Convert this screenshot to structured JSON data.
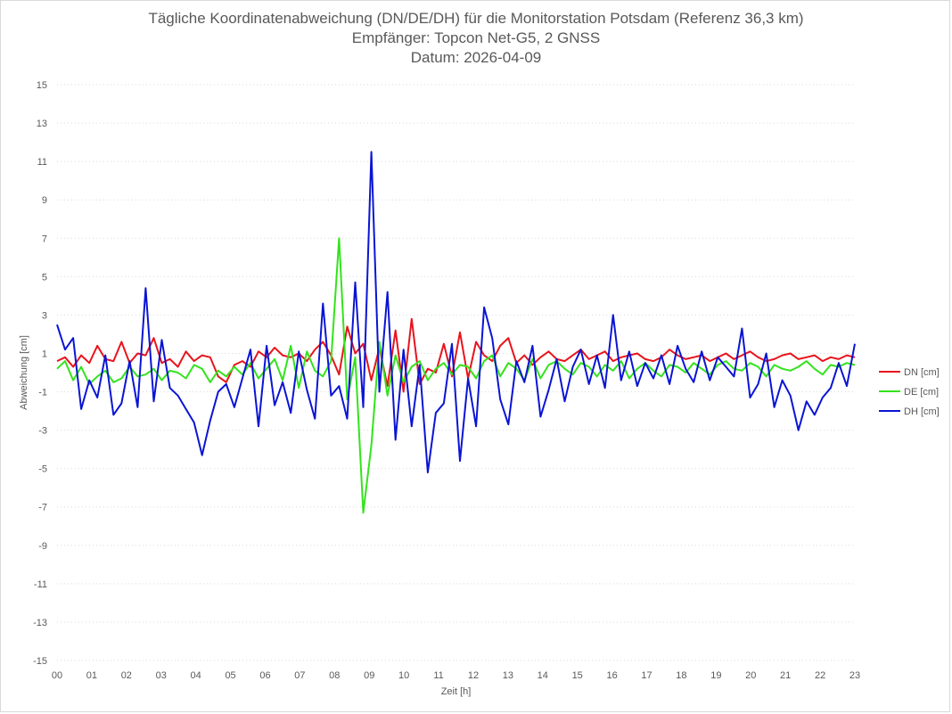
{
  "chart_data": {
    "type": "line",
    "title": "Tägliche Koordinatenabweichung (DN/DE/DH) für die Monitorstation Potsdam (Referenz 36,3 km)",
    "subtitle": "Empfänger: Topcon Net-G5, 2 GNSS",
    "date_line": "Datum: 2026-04-09",
    "xlabel": "Zeit [h]",
    "ylabel": "Abweichung [cm]",
    "xlim": [
      0,
      23
    ],
    "ylim": [
      -15,
      15
    ],
    "x_ticks": [
      "00",
      "01",
      "02",
      "03",
      "04",
      "05",
      "06",
      "07",
      "08",
      "09",
      "10",
      "11",
      "12",
      "13",
      "14",
      "15",
      "16",
      "17",
      "18",
      "19",
      "20",
      "21",
      "22",
      "23"
    ],
    "y_ticks": [
      "15",
      "13",
      "11",
      "9",
      "7",
      "5",
      "3",
      "1",
      "-1",
      "-3",
      "-5",
      "-7",
      "-9",
      "-11",
      "-13",
      "-15"
    ],
    "grid": "horizontal-dotted",
    "legend_position": "right",
    "x_step_hours": 0.5,
    "series": [
      {
        "name": "DN [cm]",
        "color": "#e8141c",
        "values": [
          0.6,
          0.8,
          0.3,
          0.9,
          0.5,
          1.4,
          0.7,
          0.6,
          1.6,
          0.5,
          1.0,
          0.9,
          1.8,
          0.5,
          0.7,
          0.3,
          1.1,
          0.6,
          0.9,
          0.8,
          -0.2,
          -0.5,
          0.4,
          0.6,
          0.3,
          1.1,
          0.8,
          1.3,
          0.9,
          0.8,
          1.0,
          0.6,
          1.2,
          1.6,
          0.9,
          -0.1,
          2.4,
          1.0,
          1.5,
          -0.4,
          1.3,
          -0.7,
          2.2,
          -1.0,
          2.8,
          -0.6,
          0.2,
          0.0,
          1.5,
          -0.2,
          2.1,
          -0.3,
          1.6,
          0.9,
          0.6,
          1.4,
          1.8,
          0.5,
          0.9,
          0.4,
          0.8,
          1.1,
          0.7,
          0.6,
          0.9,
          1.2,
          0.7,
          0.9,
          1.1,
          0.6,
          0.8,
          0.9,
          1.0,
          0.7,
          0.6,
          0.8,
          1.2,
          0.9,
          0.7,
          0.8,
          0.9,
          0.6,
          0.8,
          1.0,
          0.7,
          0.9,
          1.1,
          0.8,
          0.6,
          0.7,
          0.9,
          1.0,
          0.7,
          0.8,
          0.9,
          0.6,
          0.8,
          0.7,
          0.9,
          0.8
        ],
        "note": ""
      },
      {
        "name": "DE [cm]",
        "color": "#33e31c",
        "values": [
          0.2,
          0.6,
          -0.4,
          0.3,
          -0.6,
          -0.2,
          0.1,
          -0.5,
          -0.3,
          0.3,
          -0.2,
          -0.1,
          0.2,
          -0.4,
          0.1,
          0.0,
          -0.3,
          0.4,
          0.2,
          -0.5,
          0.1,
          -0.2,
          0.3,
          -0.1,
          0.5,
          -0.3,
          0.2,
          0.7,
          -0.4,
          1.4,
          -0.8,
          1.1,
          0.1,
          -0.2,
          0.6,
          7.0,
          -1.4,
          0.8,
          -7.3,
          -3.8,
          1.6,
          -1.2,
          0.9,
          -0.5,
          0.3,
          0.6,
          -0.4,
          0.2,
          0.5,
          -0.1,
          0.4,
          0.3,
          -0.3,
          0.6,
          0.9,
          -0.2,
          0.5,
          0.2,
          -0.4,
          0.7,
          -0.3,
          0.4,
          0.6,
          0.2,
          -0.1,
          0.5,
          0.3,
          -0.2,
          0.4,
          0.1,
          0.6,
          -0.3,
          0.2,
          0.5,
          0.1,
          -0.2,
          0.4,
          0.3,
          0.0,
          0.5,
          0.2,
          -0.1,
          0.4,
          0.6,
          0.2,
          0.1,
          0.5,
          0.3,
          -0.2,
          0.4,
          0.2,
          0.1,
          0.3,
          0.6,
          0.2,
          -0.1,
          0.4,
          0.3,
          0.5,
          0.4
        ],
        "note": ""
      },
      {
        "name": "DH [cm]",
        "color": "#0a14d4",
        "values": [
          2.5,
          1.2,
          1.8,
          -1.9,
          -0.4,
          -1.3,
          0.9,
          -2.2,
          -1.6,
          0.6,
          -1.8,
          4.4,
          -1.5,
          1.7,
          -0.8,
          -1.2,
          -1.9,
          -2.6,
          -4.3,
          -2.5,
          -1.0,
          -0.6,
          -1.8,
          -0.3,
          1.2,
          -2.8,
          1.4,
          -1.7,
          -0.5,
          -2.1,
          1.1,
          -0.9,
          -2.4,
          3.6,
          -1.2,
          -0.7,
          -2.4,
          4.7,
          -1.8,
          11.5,
          -1.0,
          4.2,
          -3.5,
          1.2,
          -2.8,
          0.4,
          -5.2,
          -2.1,
          -1.6,
          1.5,
          -4.6,
          -0.3,
          -2.8,
          3.4,
          1.8,
          -1.4,
          -2.7,
          0.6,
          -0.5,
          1.4,
          -2.3,
          -0.9,
          0.7,
          -1.5,
          0.3,
          1.2,
          -0.6,
          0.9,
          -0.8,
          3.0,
          -0.4,
          1.1,
          -0.7,
          0.5,
          -0.3,
          0.9,
          -0.6,
          1.4,
          0.2,
          -0.5,
          1.1,
          -0.4,
          0.8,
          0.3,
          -0.2,
          2.3,
          -1.3,
          -0.6,
          1.0,
          -1.8,
          -0.4,
          -1.2,
          -3.0,
          -1.5,
          -2.2,
          -1.3,
          -0.8,
          0.5,
          -0.7,
          1.5
        ],
        "note": ""
      }
    ]
  }
}
